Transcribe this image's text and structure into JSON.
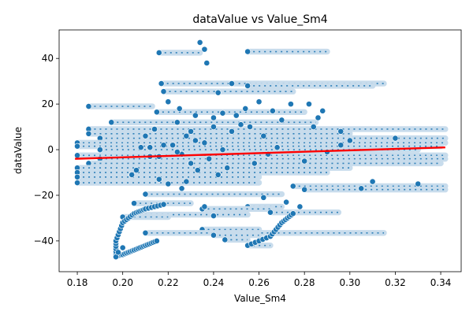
{
  "chart_data": {
    "type": "scatter",
    "title": "dataValue vs Value_Sm4",
    "xlabel": "Value_Sm4",
    "ylabel": "dataValue",
    "xlim": [
      0.172,
      0.349
    ],
    "ylim": [
      -53.5,
      52.5
    ],
    "xticks": [
      "0.18",
      "0.20",
      "0.22",
      "0.24",
      "0.26",
      "0.28",
      "0.30",
      "0.32",
      "0.34"
    ],
    "xtick_values": [
      0.18,
      0.2,
      0.22,
      0.24,
      0.26,
      0.28,
      0.3,
      0.32,
      0.34
    ],
    "yticks": [
      "−40",
      "−20",
      "0",
      "20",
      "40"
    ],
    "ytick_values": [
      -40,
      -20,
      0,
      20,
      40
    ],
    "grid": false,
    "colors": {
      "points": "#1f77b4",
      "point_edge": "#ffffff",
      "trend": "#ff0000"
    },
    "series": [
      {
        "kind": "trend_line",
        "x": [
          0.179,
          0.342
        ],
        "y": [
          -4,
          1
        ]
      },
      {
        "kind": "horizontal_bands",
        "bands": [
          {
            "y": 42.5,
            "x": [
              0.216,
              0.234
            ]
          },
          {
            "y": 43.0,
            "x": [
              0.255,
              0.29
            ]
          },
          {
            "y": 29.0,
            "x": [
              0.217,
              0.315
            ]
          },
          {
            "y": 28.0,
            "x": [
              0.255,
              0.31
            ]
          },
          {
            "y": 25.5,
            "x": [
              0.218,
              0.275
            ]
          },
          {
            "y": 19.0,
            "x": [
              0.185,
              0.213
            ]
          },
          {
            "y": 16.5,
            "x": [
              0.215,
              0.28
            ]
          },
          {
            "y": 12.0,
            "x": [
              0.195,
              0.285
            ]
          },
          {
            "y": 9.0,
            "x": [
              0.185,
              0.342
            ]
          },
          {
            "y": 7.0,
            "x": [
              0.185,
              0.3
            ]
          },
          {
            "y": 5.0,
            "x": [
              0.19,
              0.342
            ]
          },
          {
            "y": 3.0,
            "x": [
              0.18,
              0.342
            ]
          },
          {
            "y": 1.5,
            "x": [
              0.18,
              0.34
            ]
          },
          {
            "y": 0.0,
            "x": [
              0.19,
              0.33
            ]
          },
          {
            "y": -2.5,
            "x": [
              0.18,
              0.342
            ]
          },
          {
            "y": -4.0,
            "x": [
              0.19,
              0.342
            ]
          },
          {
            "y": -6.0,
            "x": [
              0.185,
              0.34
            ]
          },
          {
            "y": -8.0,
            "x": [
              0.18,
              0.3
            ]
          },
          {
            "y": -10.0,
            "x": [
              0.18,
              0.29
            ]
          },
          {
            "y": -12.0,
            "x": [
              0.18,
              0.26
            ]
          },
          {
            "y": -14.5,
            "x": [
              0.18,
              0.26
            ]
          },
          {
            "y": -16.0,
            "x": [
              0.275,
              0.342
            ]
          },
          {
            "y": -17.5,
            "x": [
              0.28,
              0.342
            ]
          },
          {
            "y": -19.5,
            "x": [
              0.21,
              0.27
            ]
          },
          {
            "y": -23.5,
            "x": [
              0.205,
              0.23
            ]
          },
          {
            "y": -25.0,
            "x": [
              0.255,
              0.27
            ]
          },
          {
            "y": -26.0,
            "x": [
              0.235,
              0.265
            ]
          },
          {
            "y": -27.5,
            "x": [
              0.265,
              0.295
            ]
          },
          {
            "y": -28.5,
            "x": [
              0.205,
              0.255
            ]
          },
          {
            "y": -29.5,
            "x": [
              0.2,
              0.22
            ]
          },
          {
            "y": -35.0,
            "x": [
              0.235,
              0.26
            ]
          },
          {
            "y": -36.5,
            "x": [
              0.21,
              0.315
            ]
          },
          {
            "y": -37.5,
            "x": [
              0.24,
              0.26
            ]
          },
          {
            "y": -39.5,
            "x": [
              0.245,
              0.255
            ]
          },
          {
            "y": -42.0,
            "x": [
              0.255,
              0.265
            ]
          }
        ]
      },
      {
        "kind": "curves",
        "curves": [
          {
            "x": [
              0.197,
              0.197,
              0.2,
              0.205,
              0.21,
              0.218
            ],
            "y": [
              -47,
              -40,
              -32,
              -28,
              -26,
              -24
            ]
          },
          {
            "x": [
              0.197,
              0.2,
              0.205,
              0.21,
              0.215
            ],
            "y": [
              -47,
              -46,
              -44,
              -42,
              -40
            ]
          },
          {
            "x": [
              0.255,
              0.265,
              0.27,
              0.275
            ],
            "y": [
              -42,
              -38,
              -32,
              -28
            ]
          }
        ]
      },
      {
        "kind": "scattered_points",
        "x": [
          0.234,
          0.236,
          0.237,
          0.22,
          0.225,
          0.24,
          0.24,
          0.23,
          0.228,
          0.232,
          0.222,
          0.244,
          0.226,
          0.238,
          0.23,
          0.246,
          0.21,
          0.218,
          0.224,
          0.212,
          0.233,
          0.242,
          0.216,
          0.22,
          0.226,
          0.236,
          0.248,
          0.256,
          0.262,
          0.268,
          0.264,
          0.258,
          0.27,
          0.266,
          0.26,
          0.274,
          0.282,
          0.288,
          0.286,
          0.284,
          0.29,
          0.296,
          0.3,
          0.25,
          0.254,
          0.252,
          0.228,
          0.204,
          0.206,
          0.208,
          0.214,
          0.224,
          0.232,
          0.244,
          0.236,
          0.24,
          0.262,
          0.272,
          0.278,
          0.305,
          0.31,
          0.33,
          0.32,
          0.296,
          0.28,
          0.248,
          0.242,
          0.216,
          0.212,
          0.197,
          0.198,
          0.2
        ],
        "y": [
          47,
          44,
          38,
          21,
          18,
          14,
          10,
          8,
          6,
          4,
          2,
          0,
          -2,
          -4,
          -6,
          -8,
          6,
          2,
          -1,
          -3,
          -9,
          -11,
          -13,
          -15,
          -17,
          3,
          8,
          10,
          6,
          1,
          -2,
          -6,
          13,
          17,
          21,
          20,
          20,
          17,
          14,
          10,
          -1,
          2,
          4,
          15,
          18,
          11,
          -14,
          -11,
          -9,
          1,
          9,
          12,
          15,
          16,
          -25,
          -29,
          -21,
          -23,
          -25,
          -17,
          -14,
          -15,
          5,
          8,
          -5,
          29,
          25,
          -3,
          1,
          -47,
          -45,
          -43
        ]
      }
    ]
  }
}
